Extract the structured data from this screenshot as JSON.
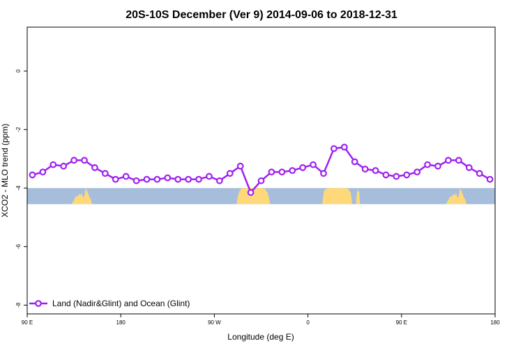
{
  "chart_data": {
    "type": "line",
    "title": "20S-10S December (Ver 9)   2014-09-06 to 2018-12-31",
    "xlabel": "Longitude (deg E)",
    "ylabel": "XCO2 - MLO trend (ppm)",
    "xlim": [
      90,
      450
    ],
    "ylim": [
      -8.3,
      1.5
    ],
    "xticks": [
      {
        "value": 90,
        "label": "90 E"
      },
      {
        "value": 162,
        "label": "180"
      },
      {
        "value": 234,
        "label": "90 W"
      },
      {
        "value": 306,
        "label": "0"
      },
      {
        "value": 378,
        "label": "90 E"
      },
      {
        "value": 450,
        "label": "180"
      }
    ],
    "yticks": [
      0,
      -2,
      -4,
      -6,
      -8
    ],
    "legend": {
      "position": "bottom-left"
    },
    "line_color": "#A020F0",
    "ocean_color": "#A6BDDB",
    "land_color": "#FFD87A",
    "series": [
      {
        "name": "Land (Nadir&Glint) and Ocean (Glint)",
        "x": [
          94,
          102,
          110,
          118,
          126,
          134,
          142,
          150,
          158,
          166,
          174,
          182,
          190,
          198,
          206,
          214,
          222,
          230,
          238,
          246,
          254,
          262,
          270,
          278,
          286,
          294,
          302,
          310,
          318,
          326,
          334,
          342,
          350,
          358,
          366,
          374,
          382,
          390,
          398,
          406,
          414,
          422,
          430,
          438,
          446
        ],
        "values": [
          -3.55,
          -3.45,
          -3.2,
          -3.25,
          -3.05,
          -3.05,
          -3.3,
          -3.5,
          -3.7,
          -3.6,
          -3.75,
          -3.7,
          -3.7,
          -3.65,
          -3.7,
          -3.7,
          -3.7,
          -3.6,
          -3.75,
          -3.5,
          -3.25,
          -4.15,
          -3.75,
          -3.45,
          -3.45,
          -3.4,
          -3.3,
          -3.2,
          -3.5,
          -2.65,
          -2.6,
          -3.1,
          -3.35,
          -3.4,
          -3.55,
          -3.6,
          -3.55,
          -3.45,
          -3.2,
          -3.25,
          -3.05,
          -3.05,
          -3.3,
          -3.5,
          -3.7
        ]
      }
    ],
    "land_strip": {
      "y_range": [
        -4.55,
        -4.0
      ],
      "segments": []
    }
  }
}
